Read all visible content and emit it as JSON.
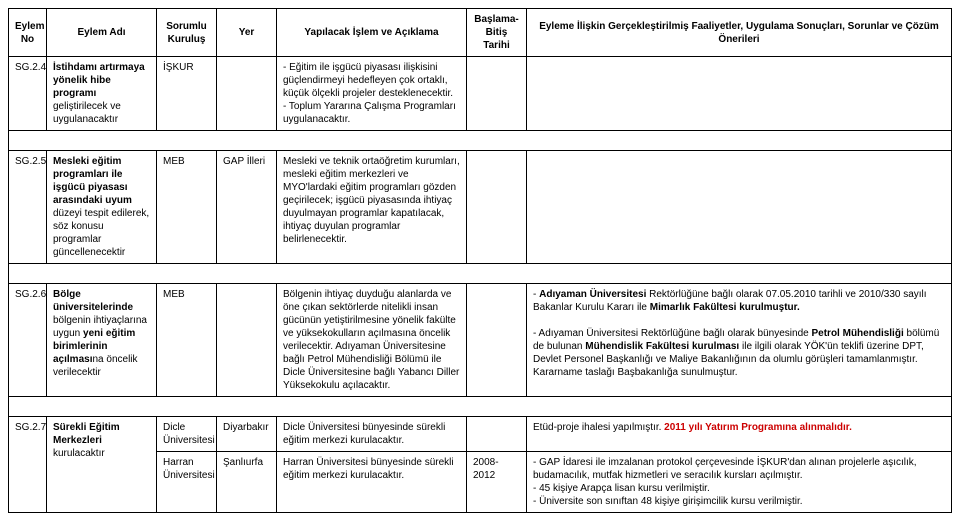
{
  "headers": {
    "no": "Eylem No",
    "name": "Eylem Adı",
    "org": "Sorumlu Kuruluş",
    "place": "Yer",
    "desc": "Yapılacak İşlem ve Açıklama",
    "date": "Başlama-Bitiş Tarihi",
    "result": "Eyleme İlişkin Gerçekleştirilmiş Faaliyetler, Uygulama Sonuçları, Sorunlar ve Çözüm Önerileri"
  },
  "rows": {
    "r24": {
      "no": "SG.2.4",
      "name_pre": "İstihdamı artırmaya yönelik hibe programı",
      "name_post": " geliştirilecek ve uygulanacaktır",
      "org": "İŞKUR",
      "place": "",
      "desc": "-  Eğitim ile işgücü piyasası ilişkisini güçlendirmeyi hedefleyen çok ortaklı, küçük ölçekli projeler desteklenecektir.\n-  Toplum Yararına Çalışma Programları uygulanacaktır.",
      "date": "",
      "result": ""
    },
    "r25": {
      "no": "SG.2.5",
      "name_pre": "Mesleki eğitim programları ile işgücü piyasası arasındaki uyum",
      "name_post": " düzeyi tespit edilerek, söz konusu programlar güncellenecektir",
      "org": "MEB",
      "place": "GAP İlleri",
      "desc": "Mesleki ve teknik ortaöğretim kurumları, mesleki eğitim merkezleri ve MYO'lardaki eğitim programları gözden geçirilecek; işgücü piyasasında ihtiyaç duyulmayan programlar kapatılacak, ihtiyaç duyulan programlar belirlenecektir.",
      "date": "",
      "result": ""
    },
    "r26": {
      "no": "SG.2.6",
      "name_post1": "Bölge üniversitelerinde",
      "name_post2": " bölgenin ihtiyaçlarına uygun ",
      "name_post3": "yeni eğitim birimlerinin açılması",
      "name_post4": "na öncelik verilecektir",
      "org": "MEB",
      "place": "",
      "desc": "Bölgenin ihtiyaç duyduğu alanlarda ve öne çıkan sektörlerde nitelikli insan gücünün yetiştirilmesine yönelik fakülte ve yüksekokulların açılmasına öncelik verilecektir. Adıyaman Üniversitesine bağlı Petrol Mühendisliği Bölümü ile Dicle Üniversitesine bağlı Yabancı Diller Yüksekokulu açılacaktır.",
      "date": "",
      "result_p1a": "-  ",
      "result_p1b": "Adıyaman Üniversitesi",
      "result_p1c": " Rektörlüğüne bağlı olarak 07.05.2010 tarihli ve 2010/330 sayılı Bakanlar Kurulu Kararı ile ",
      "result_p1d": "Mimarlık Fakültesi kurulmuştur.",
      "result_p2a": "-  Adıyaman Üniversitesi Rektörlüğüne bağlı olarak bünyesinde ",
      "result_p2b": "Petrol Mühendisliği",
      "result_p2c": " bölümü de bulunan ",
      "result_p2d": "Mühendislik Fakültesi kurulması",
      "result_p2e": " ile ilgili olarak YÖK'ün teklifi üzerine DPT, Devlet Personel Başkanlığı ve Maliye Bakanlığının da olumlu görüşleri tamamlanmıştır. Kararname taslağı Başbakanlığa sunulmuştur."
    },
    "r27a": {
      "no": "SG.2.7",
      "name_pre": "Sürekli Eğitim Merkezleri",
      "name_post": " kurulacaktır",
      "org": "Dicle Üniversitesi",
      "place": "Diyarbakır",
      "desc": "Dicle Üniversitesi bünyesinde sürekli eğitim merkezi kurulacaktır.",
      "date": "",
      "result_a": "Etüd-proje ihalesi yapılmıştır. ",
      "result_b": "2011 yılı Yatırım Programına alınmalıdır."
    },
    "r27b": {
      "org": "Harran Üniversitesi",
      "place": "Şanlıurfa",
      "desc": "Harran Üniversitesi bünyesinde sürekli eğitim merkezi kurulacaktır.",
      "date": "2008-2012",
      "result": "-  GAP İdaresi ile imzalanan protokol çerçevesinde İŞKUR'dan alınan projelerle aşıcılık, budamacılık, mutfak hizmetleri ve seracılık kursları açılmıştır.\n-  45 kişiye Arapça lisan kursu verilmiştir.\n-  Üniversite son sınıftan 48 kişiye girişimcilik kursu verilmiştir."
    }
  }
}
